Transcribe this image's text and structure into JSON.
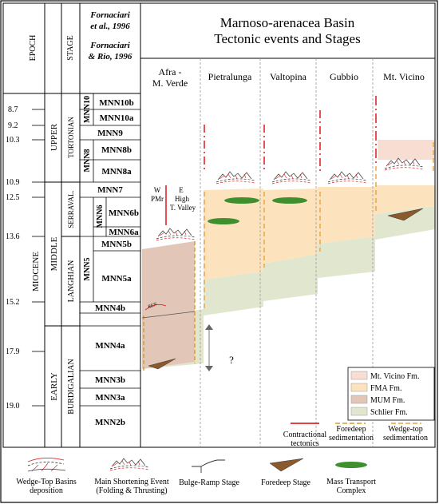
{
  "header": {
    "title_line1": "Marnoso-arenacea Basin",
    "title_line2": "Tectonic events and Stages",
    "epoch_col": "EPOCH",
    "stage_col": "STAGE",
    "ref1_line1": "Fornaciari",
    "ref1_line2": "et al., 1996",
    "ref2_line1": "Fornaciari",
    "ref2_line2": "& Rio, 1996"
  },
  "localities": [
    {
      "line1": "Afra -",
      "line2": "M. Verde"
    },
    {
      "line1": "Pietralunga",
      "line2": ""
    },
    {
      "line1": "Valtopina",
      "line2": ""
    },
    {
      "line1": "Gubbio",
      "line2": ""
    },
    {
      "line1": "Mt. Vicino",
      "line2": ""
    }
  ],
  "ages": [
    "8.7",
    "9.2",
    "10.3",
    "10.9",
    "12.5",
    "13.6",
    "15.2",
    "17.9",
    "19.0"
  ],
  "epoch": "MIOCENE",
  "subepochs": [
    "UPPER",
    "MIDDLE",
    "EARLY"
  ],
  "stages": [
    "TORTONIAN",
    "SERRAVAL.",
    "LANGHIAN",
    "BURDIGALIAN"
  ],
  "zones": {
    "groups": [
      "MNN10",
      "MNN8",
      "MNN6",
      "MNN5"
    ],
    "subzones": [
      "MNN10b",
      "MNN10a",
      "MNN9",
      "MNN8b",
      "MNN8a",
      "MNN7",
      "MNN6b",
      "MNN6a",
      "MNN5b",
      "MNN5a",
      "MNN4b",
      "MNN4a",
      "MNN3b",
      "MNN3a",
      "MNN2b"
    ]
  },
  "annotations": {
    "w_label": "W",
    "pmr_label": "PMr",
    "e_label": "E",
    "high_label": "High",
    "tvalley_label": "T. Valley",
    "question": "?",
    "ren_label": "REN"
  },
  "formations": [
    {
      "label": "Mt. Vicino Fm.",
      "color": "#f7ddd2"
    },
    {
      "label": "FMA Fm.",
      "color": "#fde3bd"
    },
    {
      "label": "MUM Fm.",
      "color": "#e2c6b8"
    },
    {
      "label": "Schlier Fm.",
      "color": "#e1e6cf"
    }
  ],
  "line_legend": {
    "contractional_1": "Contractional",
    "contractional_2": "tectonics",
    "foredeep_1": "Foredeep",
    "foredeep_2": "sedimentation",
    "wedgetop_1": "Wedge-top",
    "wedgetop_2": "sedimentation"
  },
  "symbol_legend": [
    {
      "line1": "Wedge-Top Basins",
      "line2": "deposition",
      "icon": "wedge-top-basin-icon"
    },
    {
      "line1": "Main Shortening Event",
      "line2": "(Folding & Thrusting)",
      "icon": "main-shortening-icon"
    },
    {
      "line1": "Bulge-Ramp Stage",
      "line2": "",
      "icon": "bulge-ramp-icon"
    },
    {
      "line1": "Foredeep Stage",
      "line2": "",
      "icon": "foredeep-stage-icon"
    },
    {
      "line1": "Mass Transport",
      "line2": "Complex",
      "icon": "mass-transport-icon"
    }
  ],
  "colors": {
    "contractional": "#e0262b",
    "foredeep": "#d99a2b",
    "wedgetop": "#e8a33c",
    "mass_transport": "#3f8f2f",
    "foredeep_wedge": "#8a5a2c"
  }
}
